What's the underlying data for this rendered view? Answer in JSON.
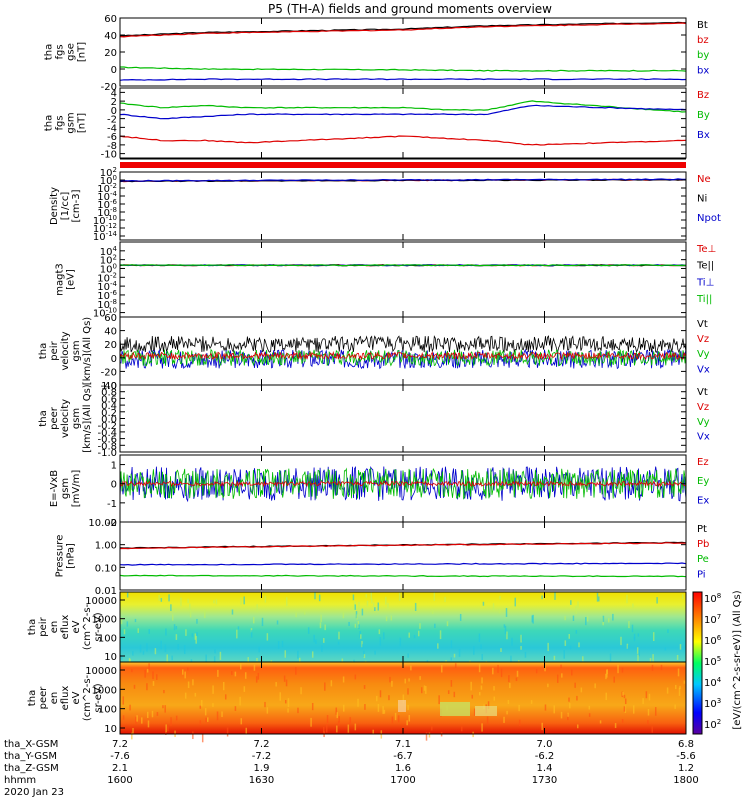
{
  "title": "P5 (TH-A) fields and ground moments overview",
  "chart_data": {
    "type": "line",
    "panels": [
      {
        "id": "fgs",
        "ylabel": [
          "tha",
          "fgs",
          "gse",
          "[nT]"
        ],
        "ylim": [
          -20,
          60
        ],
        "yticks": [
          "60",
          "40",
          "20",
          "0",
          "-20"
        ],
        "legend": [
          {
            "name": "Bt",
            "color": "#000000"
          },
          {
            "name": "bz",
            "color": "#dd0000"
          },
          {
            "name": "by",
            "color": "#00bb00"
          },
          {
            "name": "bx",
            "color": "#0000cc"
          }
        ],
        "series": [
          {
            "name": "Bt",
            "color": "#000000",
            "x": [
              1600,
              1630,
              1700,
              1730,
              1800
            ],
            "values": [
              39,
              43,
              47,
              51,
              55
            ]
          },
          {
            "name": "bz",
            "color": "#dd0000",
            "x": [
              1600,
              1630,
              1700,
              1730,
              1800
            ],
            "values": [
              38,
              42,
              46,
              50,
              54
            ]
          },
          {
            "name": "by",
            "color": "#00bb00",
            "x": [
              1600,
              1630,
              1700,
              1730,
              1800
            ],
            "values": [
              2,
              0,
              -1,
              -2,
              -2
            ]
          },
          {
            "name": "bx",
            "color": "#0000cc",
            "x": [
              1600,
              1630,
              1700,
              1730,
              1800
            ],
            "values": [
              -13,
              -12,
              -12,
              -12,
              -12
            ]
          }
        ]
      },
      {
        "id": "fgs_gsm",
        "ylabel": [
          "tha",
          "fgs",
          "gsm",
          "[nT]"
        ],
        "ylim": [
          -11,
          5
        ],
        "yticks": [
          "4",
          "2",
          "0",
          "-2",
          "-4",
          "-6",
          "-8",
          "-10"
        ],
        "legend": [
          {
            "name": "Bz",
            "color": "#dd0000"
          },
          {
            "name": "By",
            "color": "#00bb00"
          },
          {
            "name": "Bx",
            "color": "#0000cc"
          }
        ],
        "series": [
          {
            "name": "Bz",
            "color": "#dd0000",
            "x": [
              1600,
              1615,
              1630,
              1645,
              1700,
              1715,
              1730,
              1745,
              1800
            ],
            "values": [
              -6,
              -7,
              -7,
              -7.5,
              -6,
              -6.5,
              -7,
              -8,
              -7
            ]
          },
          {
            "name": "By",
            "color": "#00bb00",
            "x": [
              1600,
              1615,
              1630,
              1645,
              1700,
              1715,
              1730,
              1745,
              1800
            ],
            "values": [
              1.5,
              0.5,
              1,
              0.5,
              0.5,
              0,
              0,
              2,
              -0.5
            ]
          },
          {
            "name": "Bx",
            "color": "#0000cc",
            "x": [
              1600,
              1615,
              1630,
              1645,
              1700,
              1715,
              1730,
              1745,
              1800
            ],
            "values": [
              -1,
              -2,
              -1.5,
              -1,
              -1,
              -1,
              -1,
              1,
              0
            ]
          }
        ]
      },
      {
        "id": "density",
        "ylabel": [
          "Density",
          "[1/cc]",
          "[cm-3]"
        ],
        "log": true,
        "ylim": [
          -15,
          2
        ],
        "yticks": [
          "10^2",
          "10^0",
          "10^-2",
          "10^-4",
          "10^-6",
          "10^-8",
          "10^-10",
          "10^-12",
          "10^-14"
        ],
        "legend": [
          {
            "name": "Ne",
            "color": "#dd0000"
          },
          {
            "name": "Ni",
            "color": "#000000"
          },
          {
            "name": "Npot",
            "color": "#0000cc"
          }
        ],
        "series": [
          {
            "name": "Ne",
            "color": "#dd0000",
            "x": [
              1600,
              1800
            ],
            "values": [
              0.5,
              1.2
            ]
          },
          {
            "name": "Ni",
            "color": "#000000",
            "x": [
              1600,
              1800
            ],
            "values": [
              0.45,
              1.1
            ]
          },
          {
            "name": "Npot",
            "color": "#0000cc",
            "x": [
              1600,
              1800
            ],
            "values": [
              0.6,
              1.5
            ]
          }
        ]
      },
      {
        "id": "temp",
        "ylabel": [
          "magt3",
          "[eV]"
        ],
        "log": true,
        "ylim": [
          -11,
          6
        ],
        "yticks": [
          "10^4",
          "10^2",
          "10^0",
          "10^-2",
          "10^-4",
          "10^-6",
          "10^-8",
          "10^-10"
        ],
        "legend": [
          {
            "name": "Te⊥",
            "color": "#dd0000"
          },
          {
            "name": "Te||",
            "color": "#000000"
          },
          {
            "name": "Ti⊥",
            "color": "#0000cc"
          },
          {
            "name": "Ti||",
            "color": "#00bb00"
          }
        ],
        "series": [
          {
            "name": "Te⊥",
            "color": "#dd0000",
            "x": [
              1600,
              1800
            ],
            "values": [
              5.5,
              5.3
            ]
          },
          {
            "name": "Te||",
            "color": "#000000",
            "x": [
              1600,
              1800
            ],
            "values": [
              5.3,
              5.1
            ]
          },
          {
            "name": "Ti⊥",
            "color": "#0000cc",
            "x": [
              1600,
              1800
            ],
            "values": [
              5.7,
              5.6
            ]
          },
          {
            "name": "Ti||",
            "color": "#00bb00",
            "x": [
              1600,
              1800
            ],
            "values": [
              5.6,
              5.5
            ]
          }
        ]
      },
      {
        "id": "peir_vel",
        "ylabel": [
          "tha",
          "peir",
          "velocity",
          "gsm",
          "[km/s](All Qs)"
        ],
        "ylim": [
          -40,
          60
        ],
        "yticks": [
          "60",
          "40",
          "20",
          "0",
          "-20",
          "-40"
        ],
        "legend": [
          {
            "name": "Vt",
            "color": "#000000"
          },
          {
            "name": "Vz",
            "color": "#dd0000"
          },
          {
            "name": "Vy",
            "color": "#00bb00"
          },
          {
            "name": "Vx",
            "color": "#0000cc"
          }
        ],
        "series": [
          {
            "name": "Vt",
            "color": "#000000",
            "mean": 20,
            "amp": 12
          },
          {
            "name": "Vx",
            "color": "#0000cc",
            "mean": -2,
            "amp": 14
          },
          {
            "name": "Vy",
            "color": "#00bb00",
            "mean": 0,
            "amp": 12
          },
          {
            "name": "Vz",
            "color": "#dd0000",
            "mean": 3,
            "amp": 5
          }
        ]
      },
      {
        "id": "peer_vel",
        "ylabel": [
          "tha",
          "peer",
          "velocity",
          "gsm",
          "[km/s](All Qs)"
        ],
        "ylim": [
          -1,
          1
        ],
        "yticks": [
          "1.0",
          "0.8",
          "0.6",
          "0.4",
          "0.2",
          "0.0",
          "-0.2",
          "-0.4",
          "-0.6",
          "-0.8",
          "-1.0"
        ],
        "legend": [
          {
            "name": "Vt",
            "color": "#000000"
          },
          {
            "name": "Vz",
            "color": "#dd0000"
          },
          {
            "name": "Vy",
            "color": "#00bb00"
          },
          {
            "name": "Vx",
            "color": "#0000cc"
          }
        ],
        "series": []
      },
      {
        "id": "efield",
        "ylabel": [
          "E=-VxB",
          "gsm",
          "[mV/m]"
        ],
        "ylim": [
          -2,
          1.5
        ],
        "yticks": [
          "1",
          "0",
          "-1",
          "-2"
        ],
        "legend": [
          {
            "name": "Ez",
            "color": "#dd0000"
          },
          {
            "name": "Ey",
            "color": "#00bb00"
          },
          {
            "name": "Ex",
            "color": "#0000cc"
          }
        ],
        "series": [
          {
            "name": "Ex",
            "color": "#0000cc",
            "mean": 0,
            "amp": 0.9
          },
          {
            "name": "Ey",
            "color": "#00bb00",
            "mean": 0,
            "amp": 0.8
          },
          {
            "name": "Ez",
            "color": "#dd0000",
            "mean": 0,
            "amp": 0.12
          }
        ]
      },
      {
        "id": "pressure",
        "ylabel": [
          "Pressure",
          "[nPa]"
        ],
        "log": true,
        "ylim": [
          -2,
          1
        ],
        "yticks": [
          "10.00",
          "1.00",
          "0.10",
          "0.01"
        ],
        "legend": [
          {
            "name": "Pt",
            "color": "#000000"
          },
          {
            "name": "Pb",
            "color": "#dd0000"
          },
          {
            "name": "Pe",
            "color": "#00bb00"
          },
          {
            "name": "Pi",
            "color": "#0000cc"
          }
        ],
        "series": [
          {
            "name": "Pt",
            "color": "#000000",
            "x": [
              1600,
              1800
            ],
            "values": [
              0.7,
              1.25
            ]
          },
          {
            "name": "Pb",
            "color": "#dd0000",
            "x": [
              1600,
              1800
            ],
            "values": [
              0.68,
              1.2
            ]
          },
          {
            "name": "Pi",
            "color": "#0000cc",
            "x": [
              1600,
              1800
            ],
            "values": [
              0.13,
              0.15
            ]
          },
          {
            "name": "Pe",
            "color": "#00bb00",
            "x": [
              1600,
              1800
            ],
            "values": [
              0.043,
              0.04
            ]
          }
        ]
      },
      {
        "id": "peir_flux",
        "type": "heatmap",
        "ylabel": [
          "tha",
          "peir",
          "en",
          "eflux",
          "eV",
          "(cm^2-s-",
          "sr-eV)"
        ],
        "yticks": [
          "10000",
          "1000",
          "100",
          "10"
        ]
      },
      {
        "id": "peer_flux",
        "type": "heatmap",
        "ylabel": [
          "tha",
          "peer",
          "en",
          "eflux",
          "eV",
          "(cm^2-s-",
          "sr-eV)"
        ],
        "yticks": [
          "10000",
          "1000",
          "100",
          "10"
        ]
      }
    ],
    "colorbar": {
      "ticks": [
        "10^8",
        "10^7",
        "10^6",
        "10^5",
        "10^4",
        "10^3",
        "10^2"
      ],
      "label": "[eV/(cm^2-s-sr-eV)] (All Qs)"
    },
    "x": {
      "ticks": [
        "1600",
        "1630",
        "1700",
        "1730",
        "1800"
      ],
      "label": "hhmm",
      "date": "2020 Jan 23"
    },
    "ephemeris": [
      {
        "label": "tha_X-GSM",
        "values": [
          "7.2",
          "7.2",
          "7.1",
          "7.0",
          "6.8"
        ]
      },
      {
        "label": "tha_Y-GSM",
        "values": [
          "-7.6",
          "-7.2",
          "-6.7",
          "-6.2",
          "-5.6"
        ]
      },
      {
        "label": "tha_Z-GSM",
        "values": [
          "2.1",
          "1.9",
          "1.6",
          "1.4",
          "1.2"
        ]
      }
    ]
  }
}
